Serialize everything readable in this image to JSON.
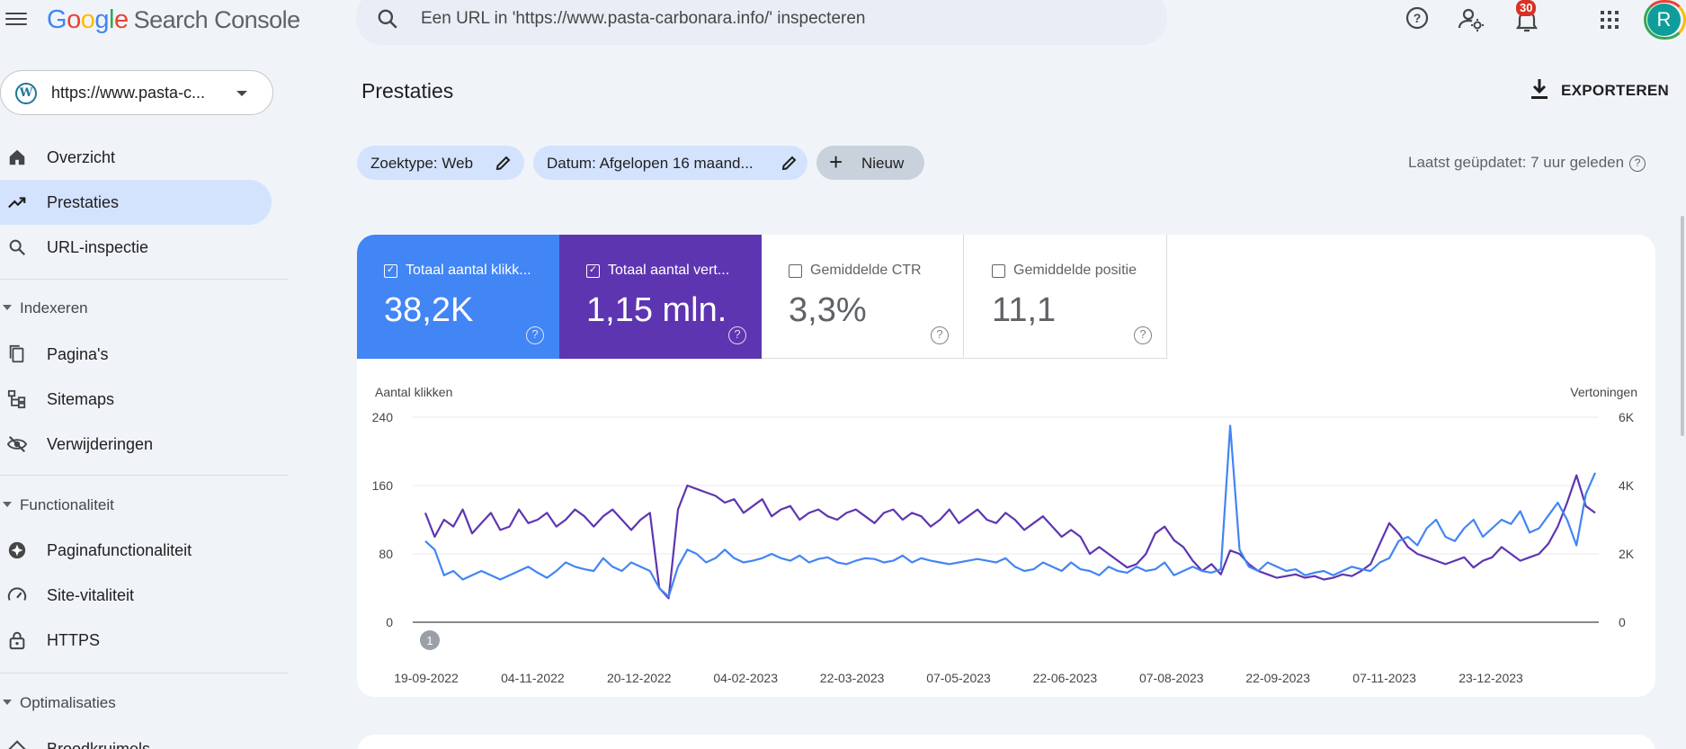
{
  "header": {
    "logo": {
      "g": "G",
      "o1": "o",
      "o2": "o",
      "g2": "g",
      "l": "l",
      "e": "e",
      "product": "Search Console"
    },
    "search_placeholder": "Een URL in 'https://www.pasta-carbonara.info/' inspecteren",
    "notification_count": "30",
    "avatar_initial": "R"
  },
  "sidebar": {
    "property": "https://www.pasta-c...",
    "property_icon_letter": "W",
    "items": [
      {
        "label": "Overzicht",
        "icon": "home-icon",
        "active": false
      },
      {
        "label": "Prestaties",
        "icon": "trending-up-icon",
        "active": true
      },
      {
        "label": "URL-inspectie",
        "icon": "search-icon",
        "active": false
      }
    ],
    "sections": [
      {
        "label": "Indexeren",
        "items": [
          {
            "label": "Pagina's",
            "icon": "pages-icon"
          },
          {
            "label": "Sitemaps",
            "icon": "sitemap-icon"
          },
          {
            "label": "Verwijderingen",
            "icon": "visibility-off-icon"
          }
        ]
      },
      {
        "label": "Functionaliteit",
        "items": [
          {
            "label": "Paginafunctionaliteit",
            "icon": "page-experience-icon"
          },
          {
            "label": "Site-vitaliteit",
            "icon": "speed-icon"
          },
          {
            "label": "HTTPS",
            "icon": "lock-icon"
          }
        ]
      },
      {
        "label": "Optimalisaties",
        "items": [
          {
            "label": "Broodkruimels",
            "icon": "diamond-icon"
          }
        ]
      }
    ]
  },
  "main": {
    "title": "Prestaties",
    "export_label": "EXPORTEREN",
    "filters": [
      {
        "label": "Zoektype: Web"
      },
      {
        "label": "Datum: Afgelopen 16 maand..."
      }
    ],
    "new_label": "Nieuw",
    "last_updated": "Laatst geüpdatet: 7 uur geleden",
    "metrics": [
      {
        "label": "Totaal aantal klikk...",
        "value": "38,2K",
        "checked": true,
        "color": "#4285f4"
      },
      {
        "label": "Totaal aantal vert...",
        "value": "1,15 mln.",
        "checked": true,
        "color": "#5e35b1"
      },
      {
        "label": "Gemiddelde CTR",
        "value": "3,3%",
        "checked": false
      },
      {
        "label": "Gemiddelde positie",
        "value": "11,1",
        "checked": false
      }
    ]
  },
  "chart_data": {
    "type": "line",
    "ylabel_left": "Aantal klikken",
    "ylabel_right": "Vertoningen",
    "y_left_ticks": [
      "240",
      "160",
      "80",
      "0"
    ],
    "y_right_ticks": [
      "6K",
      "4K",
      "2K",
      "0"
    ],
    "ylim_left": [
      0,
      240
    ],
    "ylim_right": [
      0,
      6000
    ],
    "x_ticks": [
      "19-09-2022",
      "04-11-2022",
      "20-12-2022",
      "04-02-2023",
      "22-03-2023",
      "07-05-2023",
      "22-06-2023",
      "07-08-2023",
      "22-09-2023",
      "07-11-2023",
      "23-12-2023"
    ],
    "annotation": "1",
    "grid": true,
    "series": [
      {
        "name": "Totaal aantal klikken",
        "axis": "left",
        "color": "#4285f4",
        "values": [
          95,
          85,
          55,
          60,
          50,
          55,
          60,
          55,
          50,
          55,
          60,
          65,
          58,
          52,
          60,
          70,
          65,
          62,
          60,
          75,
          65,
          60,
          70,
          65,
          60,
          40,
          30,
          65,
          85,
          80,
          70,
          75,
          85,
          75,
          70,
          72,
          75,
          80,
          75,
          72,
          78,
          70,
          74,
          76,
          70,
          68,
          72,
          75,
          74,
          70,
          72,
          78,
          70,
          75,
          72,
          70,
          68,
          70,
          72,
          74,
          72,
          70,
          75,
          65,
          60,
          62,
          70,
          65,
          60,
          70,
          62,
          60,
          55,
          65,
          60,
          58,
          65,
          60,
          62,
          70,
          55,
          60,
          65,
          60,
          58,
          62,
          230,
          85,
          65,
          60,
          70,
          65,
          60,
          62,
          55,
          58,
          60,
          55,
          60,
          65,
          62,
          60,
          70,
          75,
          95,
          100,
          90,
          110,
          120,
          100,
          95,
          110,
          120,
          100,
          110,
          120,
          115,
          130,
          105,
          110,
          125,
          140,
          120,
          90,
          150,
          175
        ]
      },
      {
        "name": "Totaal aantal vertoningen",
        "axis": "right",
        "color": "#5e35b1",
        "values": [
          3200,
          2500,
          3000,
          2800,
          3300,
          2600,
          2900,
          3200,
          2700,
          2800,
          3300,
          2900,
          3000,
          3200,
          2800,
          3000,
          3300,
          3100,
          2800,
          3100,
          3300,
          3000,
          2700,
          3000,
          3200,
          1000,
          700,
          3300,
          4000,
          3900,
          3800,
          3700,
          3500,
          3600,
          3200,
          3400,
          3600,
          3100,
          3300,
          3400,
          3000,
          3200,
          3300,
          3100,
          3000,
          3200,
          3300,
          3100,
          2900,
          3200,
          3300,
          3000,
          3200,
          3100,
          2800,
          3000,
          3300,
          2900,
          3100,
          3300,
          3000,
          2900,
          3200,
          3000,
          2700,
          2900,
          3100,
          2800,
          2500,
          2700,
          2500,
          2000,
          2200,
          2000,
          1800,
          1600,
          1700,
          2000,
          2600,
          2800,
          2400,
          2200,
          1800,
          1500,
          1700,
          1400,
          2100,
          2000,
          1700,
          1500,
          1400,
          1300,
          1350,
          1400,
          1300,
          1350,
          1250,
          1300,
          1400,
          1350,
          1500,
          1700,
          2300,
          2900,
          2600,
          2200,
          2000,
          1900,
          1800,
          1700,
          1800,
          1900,
          1600,
          1800,
          1900,
          2200,
          2000,
          1800,
          1900,
          2000,
          2300,
          2800,
          3500,
          4300,
          3400,
          3200
        ]
      }
    ]
  }
}
